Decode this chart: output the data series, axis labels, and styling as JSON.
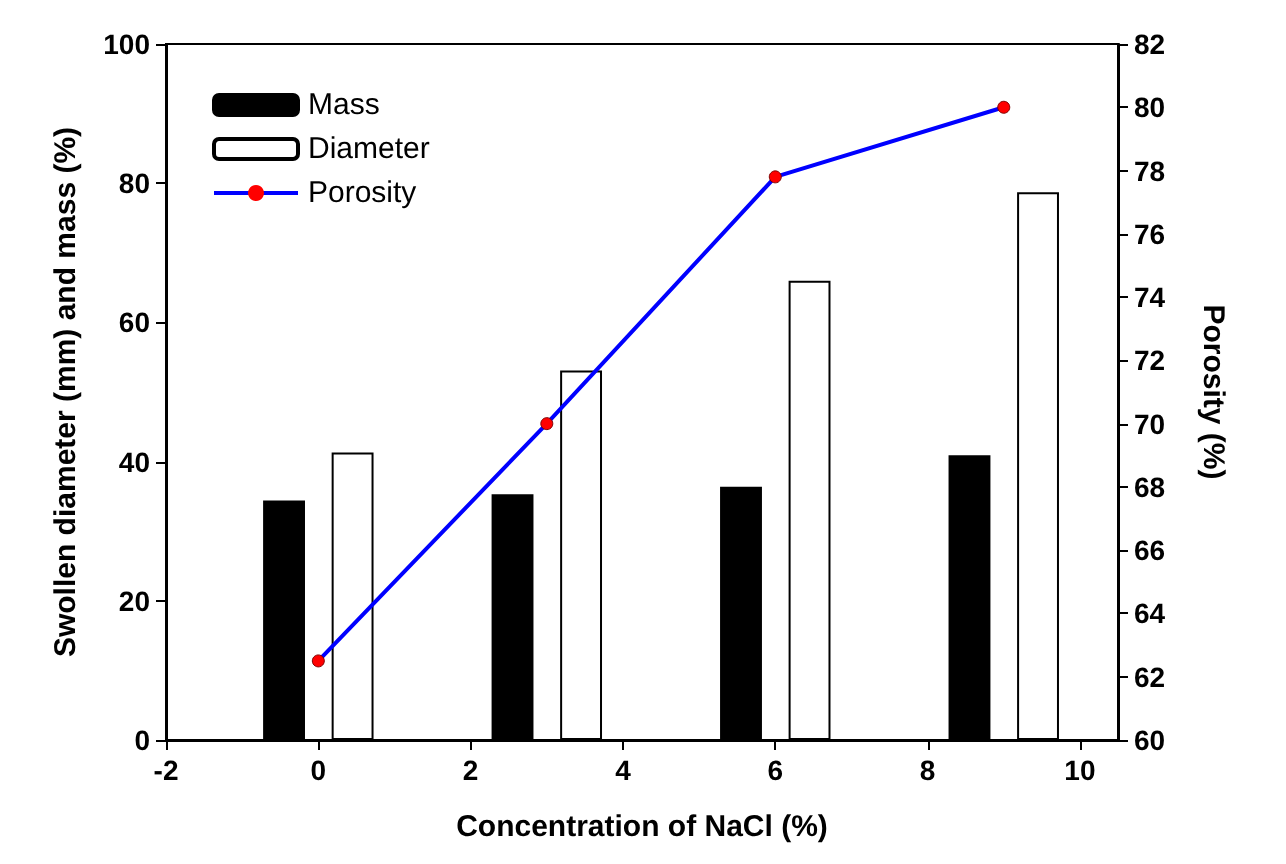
{
  "chart_data": {
    "type": "bar",
    "xlabel": "Concentration of NaCl (%)",
    "ylabel": "Swollen diameter (mm) and mass (%)",
    "y2label": "Porosity (%)",
    "xlim": [
      -2,
      10.5
    ],
    "xticks": [
      -2,
      0,
      2,
      4,
      6,
      8,
      10
    ],
    "ylim": [
      0,
      100
    ],
    "yticks": [
      0,
      20,
      40,
      60,
      80,
      100
    ],
    "y2lim": [
      60,
      82
    ],
    "y2ticks": [
      60,
      62,
      64,
      66,
      68,
      70,
      72,
      74,
      76,
      78,
      80,
      82
    ],
    "series": [
      {
        "name": "Mass",
        "color": "#000000",
        "x": [
          -0.45,
          2.55,
          5.55,
          8.55
        ],
        "values": [
          34.4,
          35.3,
          36.4,
          40.9
        ]
      },
      {
        "name": "Diameter",
        "color": "#ffffff",
        "x": [
          0.45,
          3.45,
          6.45,
          9.45
        ],
        "values": [
          41.3,
          53.1,
          66.0,
          78.7
        ]
      },
      {
        "name": "Porosity",
        "type": "line",
        "axis": "y2",
        "color": "#0000ff",
        "colors": [
          "#ff0000",
          "#ff0000",
          "#ff0000",
          "#ff0000"
        ],
        "marker": "circle",
        "x": [
          0,
          3,
          6,
          9
        ],
        "values": [
          62.5,
          70,
          77.8,
          80
        ]
      }
    ],
    "legend": "top left",
    "grid": false
  }
}
